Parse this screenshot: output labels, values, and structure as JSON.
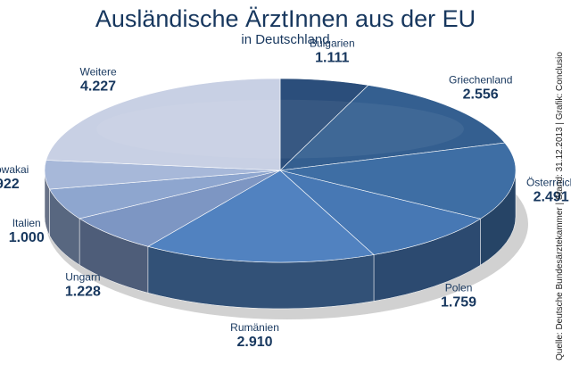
{
  "header": {
    "title": "Ausländische ÄrztInnen aus der EU",
    "subtitle": "in Deutschland"
  },
  "source": "Quelle: Deutsche Bundesärztekammer | Stand: 31.12.2013 | Grafik: Conclusio",
  "chart_data": {
    "type": "pie",
    "title": "Ausländische ÄrztInnen aus der EU",
    "subtitle": "in Deutschland",
    "categories": [
      "Bulgarien",
      "Griechenland",
      "Österreich",
      "Polen",
      "Rumänien",
      "Ungarn",
      "Italien",
      "Slowakai",
      "Weitere"
    ],
    "values": [
      1111,
      2556,
      2491,
      1759,
      2910,
      1228,
      1000,
      922,
      4227
    ],
    "value_labels": [
      "1.111",
      "2.556",
      "2.491",
      "1.759",
      "2.910",
      "1.228",
      "1.000",
      "922",
      "4.227"
    ],
    "colors": [
      "#2b4e7b",
      "#345f90",
      "#3e6ea4",
      "#4778b4",
      "#5182c0",
      "#7d96c3",
      "#8ea6cf",
      "#a7b8d9",
      "#c8d0e4"
    ],
    "label_color": "#17375e",
    "style": "3d-tilted"
  }
}
